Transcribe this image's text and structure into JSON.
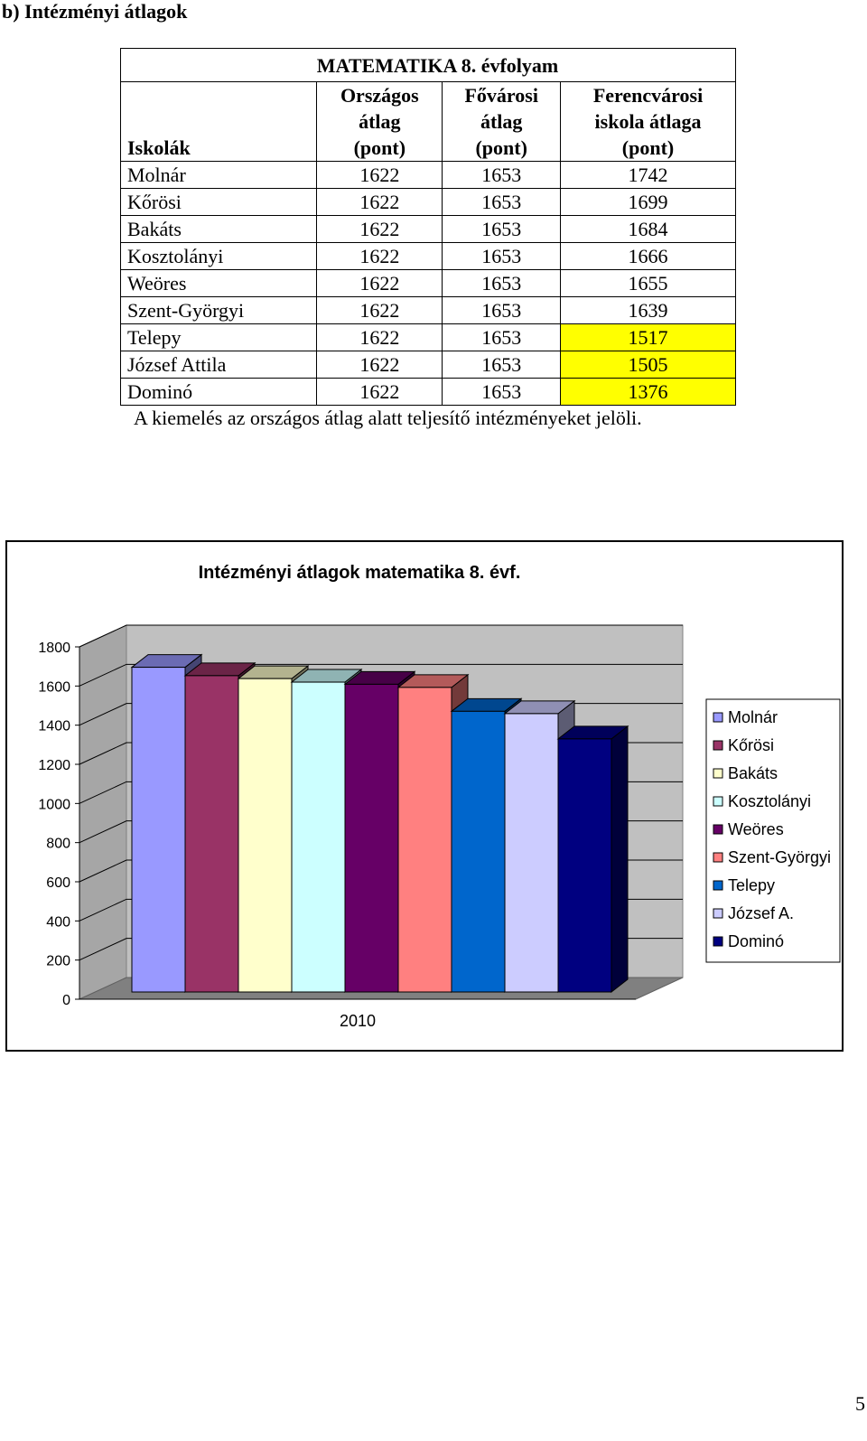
{
  "heading": "b) Intézményi átlagok",
  "table": {
    "title": "MATEMATIKA 8. évfolyam",
    "col_schools": "Iskolák",
    "col_national": [
      "Országos",
      "átlag",
      "(pont)"
    ],
    "col_capital": [
      "Fővárosi",
      "átlag",
      "(pont)"
    ],
    "col_district": [
      "Ferencvárosi",
      "iskola átlaga",
      "(pont)"
    ],
    "rows": [
      {
        "school": "Molnár",
        "national": "1622",
        "capital": "1653",
        "district": "1742",
        "highlight": false
      },
      {
        "school": "Kőrösi",
        "national": "1622",
        "capital": "1653",
        "district": "1699",
        "highlight": false
      },
      {
        "school": "Bakáts",
        "national": "1622",
        "capital": "1653",
        "district": "1684",
        "highlight": false
      },
      {
        "school": "Kosztolányi",
        "national": "1622",
        "capital": "1653",
        "district": "1666",
        "highlight": false
      },
      {
        "school": "Weöres",
        "national": "1622",
        "capital": "1653",
        "district": "1655",
        "highlight": false
      },
      {
        "school": "Szent-Györgyi",
        "national": "1622",
        "capital": "1653",
        "district": "1639",
        "highlight": false
      },
      {
        "school": "Telepy",
        "national": "1622",
        "capital": "1653",
        "district": "1517",
        "highlight": true
      },
      {
        "school": "József Attila",
        "national": "1622",
        "capital": "1653",
        "district": "1505",
        "highlight": true
      },
      {
        "school": "Dominó",
        "national": "1622",
        "capital": "1653",
        "district": "1376",
        "highlight": true
      }
    ],
    "highlight_color": "#ffff00"
  },
  "note": "A kiemelés az országos átlag alatt teljesítő intézményeket jelöli.",
  "chart_data": {
    "type": "bar",
    "title": "Intézményi átlagok matematika 8. évf.",
    "categories": [
      "2010"
    ],
    "series": [
      {
        "name": "Molnár",
        "values": [
          1742
        ],
        "color": "#9999ff"
      },
      {
        "name": "Kőrösi",
        "values": [
          1699
        ],
        "color": "#993366"
      },
      {
        "name": "Bakáts",
        "values": [
          1684
        ],
        "color": "#ffffcc"
      },
      {
        "name": "Kosztolányi",
        "values": [
          1666
        ],
        "color": "#ccffff"
      },
      {
        "name": "Weöres",
        "values": [
          1655
        ],
        "color": "#660066"
      },
      {
        "name": "Szent-Györgyi",
        "values": [
          1639
        ],
        "color": "#ff8080"
      },
      {
        "name": "Telepy",
        "values": [
          1517
        ],
        "color": "#0066cc"
      },
      {
        "name": "József A.",
        "values": [
          1505
        ],
        "color": "#ccccff"
      },
      {
        "name": "Dominó",
        "values": [
          1376
        ],
        "color": "#000080"
      }
    ],
    "ylim": [
      0,
      1800
    ],
    "yticks": [
      0,
      200,
      400,
      600,
      800,
      1000,
      1200,
      1400,
      1600,
      1800
    ],
    "grid": true,
    "three_d": true,
    "wall_color": "#c0c0c0",
    "floor_color": "#808080",
    "legend_position": "right"
  },
  "page_number": "5"
}
